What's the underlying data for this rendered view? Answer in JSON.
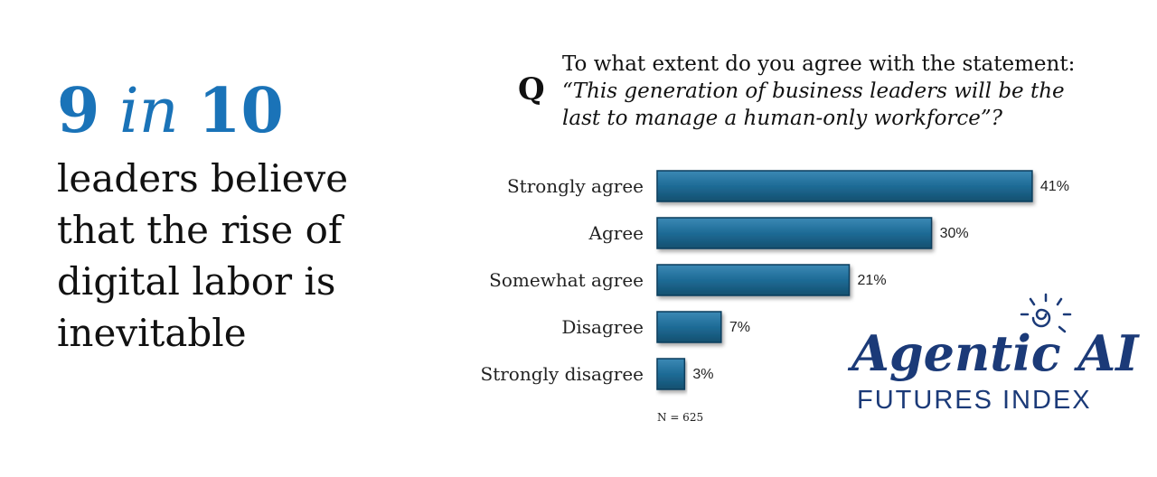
{
  "headline": {
    "number": "9",
    "connector": "in",
    "total": "10",
    "body": [
      "leaders believe",
      "that the rise of",
      "digital labor is",
      "inevitable"
    ]
  },
  "chart_data": {
    "type": "bar",
    "orientation": "horizontal",
    "marker": "Q",
    "question": [
      "To what extent do you agree with the statement:",
      "“This generation of business leaders will be the",
      "last to manage a human-only workforce”?"
    ],
    "categories": [
      "Strongly agree",
      "Agree",
      "Somewhat agree",
      "Disagree",
      "Strongly disagree"
    ],
    "values": [
      41,
      30,
      21,
      7,
      3
    ],
    "value_labels": [
      "41%",
      "30%",
      "21%",
      "7%",
      "3%"
    ],
    "color": "#1e6b96",
    "note": "N = 625"
  },
  "logo": {
    "name": "Agentic AI",
    "subtitle": "FUTURES INDEX"
  }
}
